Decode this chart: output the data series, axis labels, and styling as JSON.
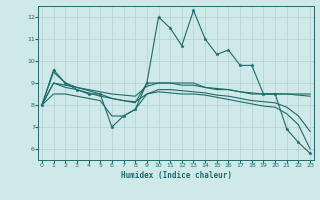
{
  "xlabel": "Humidex (Indice chaleur)",
  "background_color": "#cfe8e8",
  "grid_color": "#b8d4d4",
  "line_color": "#1e6b6b",
  "x": [
    0,
    1,
    2,
    3,
    4,
    5,
    6,
    7,
    8,
    9,
    10,
    11,
    12,
    13,
    14,
    15,
    16,
    17,
    18,
    19,
    20,
    21,
    22,
    23
  ],
  "ylim": [
    5.5,
    12.5
  ],
  "xlim": [
    -0.3,
    23.3
  ],
  "yticks": [
    6,
    7,
    8,
    9,
    10,
    11,
    12
  ],
  "xticks": [
    0,
    1,
    2,
    3,
    4,
    5,
    6,
    7,
    8,
    9,
    10,
    11,
    12,
    13,
    14,
    15,
    16,
    17,
    18,
    19,
    20,
    21,
    22,
    23
  ],
  "series": [
    [
      8.0,
      9.6,
      9.0,
      8.7,
      8.5,
      8.5,
      7.0,
      7.5,
      7.8,
      9.0,
      12.0,
      11.5,
      10.7,
      12.3,
      11.0,
      10.3,
      10.5,
      9.8,
      9.8,
      8.5,
      8.5,
      6.9,
      6.3,
      5.8
    ],
    [
      8.0,
      9.0,
      8.8,
      8.7,
      8.55,
      8.4,
      8.3,
      8.2,
      8.1,
      9.0,
      9.0,
      9.0,
      9.0,
      9.0,
      8.8,
      8.7,
      8.7,
      8.6,
      8.5,
      8.5,
      8.5,
      8.5,
      8.5,
      8.5
    ],
    [
      8.0,
      9.0,
      8.9,
      8.8,
      8.7,
      8.6,
      8.5,
      8.45,
      8.4,
      8.85,
      9.0,
      9.0,
      8.9,
      8.9,
      8.8,
      8.75,
      8.7,
      8.6,
      8.55,
      8.5,
      8.5,
      8.5,
      8.45,
      8.4
    ],
    [
      8.0,
      9.5,
      9.0,
      8.8,
      8.65,
      8.5,
      8.3,
      8.2,
      8.15,
      8.5,
      8.7,
      8.7,
      8.65,
      8.6,
      8.55,
      8.45,
      8.4,
      8.3,
      8.2,
      8.15,
      8.1,
      7.9,
      7.5,
      6.8
    ],
    [
      8.0,
      8.5,
      8.5,
      8.4,
      8.3,
      8.2,
      7.5,
      7.5,
      7.8,
      8.5,
      8.6,
      8.55,
      8.5,
      8.5,
      8.45,
      8.35,
      8.25,
      8.15,
      8.05,
      7.95,
      7.9,
      7.6,
      7.1,
      6.0
    ]
  ]
}
